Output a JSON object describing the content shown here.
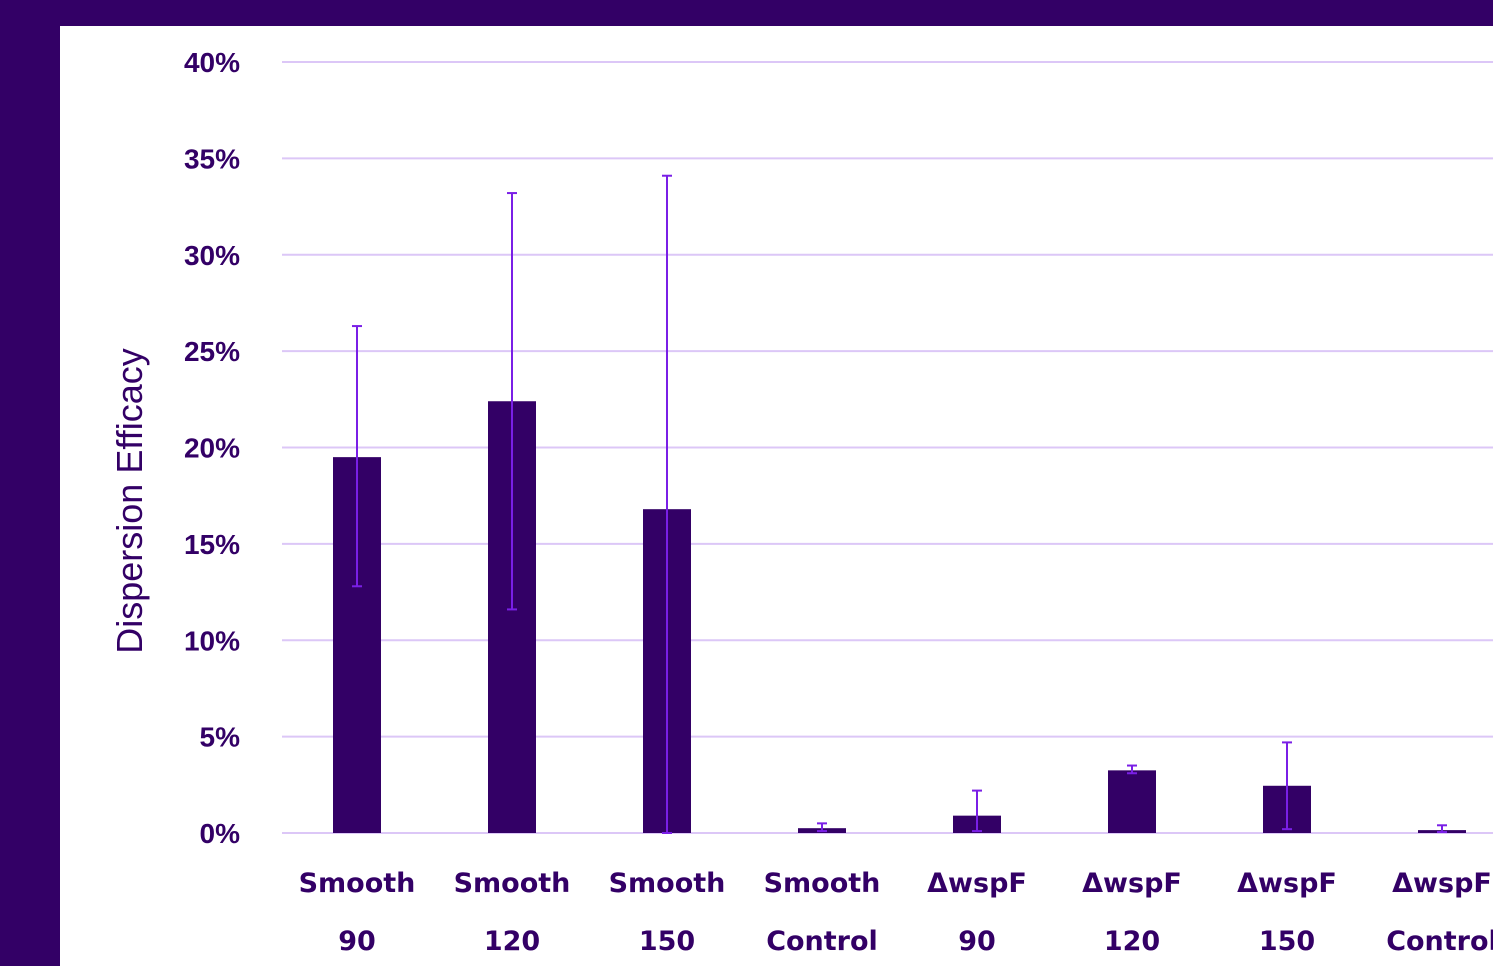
{
  "chart_data": {
    "type": "bar",
    "title": "",
    "xlabel": "",
    "ylabel": "Dispersion Efficacy",
    "ylim": [
      0,
      40
    ],
    "yticks": [
      "0%",
      "5%",
      "10%",
      "15%",
      "20%",
      "25%",
      "30%",
      "35%",
      "40%"
    ],
    "grid": true,
    "legend": "none",
    "categories": [
      [
        "Smooth",
        "90"
      ],
      [
        "Smooth",
        "120"
      ],
      [
        "Smooth",
        "150"
      ],
      [
        "Smooth",
        "Control"
      ],
      [
        "ΔwspF",
        "90"
      ],
      [
        "ΔwspF",
        "120"
      ],
      [
        "ΔwspF",
        "150"
      ],
      [
        "ΔwspF",
        "Control"
      ]
    ],
    "values": [
      19.5,
      22.4,
      16.8,
      0.25,
      0.9,
      3.25,
      2.45,
      0.15
    ],
    "error_low": [
      12.8,
      11.6,
      0.0,
      0.1,
      0.1,
      3.1,
      0.2,
      0.05
    ],
    "error_high": [
      26.3,
      33.2,
      34.1,
      0.5,
      2.2,
      3.5,
      4.7,
      0.4
    ],
    "colors": {
      "bar": "#330066",
      "error_bar": "#7a1fe6",
      "grid": "#dcc7f7",
      "text": "#330066",
      "frame": "#330066"
    }
  }
}
